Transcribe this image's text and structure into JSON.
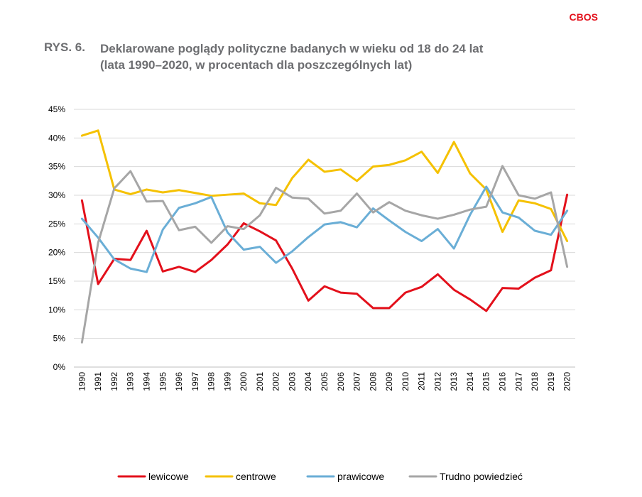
{
  "brand": "CBOS",
  "figure": {
    "number": "RYS. 6.",
    "title_line1": "Deklarowane poglądy polityczne badanych w wieku od 18 do 24 lat",
    "title_line2": "(lata 1990–2020, w procentach dla poszczególnych lat)"
  },
  "chart_data": {
    "type": "line",
    "x": [
      "1990",
      "1991",
      "1992",
      "1993",
      "1994",
      "1995",
      "1996",
      "1997",
      "1998",
      "1999",
      "2000",
      "2001",
      "2002",
      "2003",
      "2004",
      "2005",
      "2006",
      "2007",
      "2008",
      "2009",
      "2010",
      "2011",
      "2012",
      "2013",
      "2014",
      "2015",
      "2016",
      "2017",
      "2018",
      "2019",
      "2020"
    ],
    "ylim": [
      0,
      45
    ],
    "yticks": [
      "0%",
      "5%",
      "10%",
      "15%",
      "20%",
      "25%",
      "30%",
      "35%",
      "40%",
      "45%"
    ],
    "grid": true,
    "legend_position": "bottom",
    "series": [
      {
        "name": "lewicowe",
        "color": "#e3101b",
        "values": [
          29.1,
          14.5,
          18.9,
          18.7,
          23.8,
          16.7,
          17.5,
          16.6,
          18.7,
          21.4,
          25.1,
          23.7,
          22.1,
          17.2,
          11.6,
          14.1,
          13.0,
          12.8,
          10.3,
          10.3,
          13.0,
          14.0,
          16.2,
          13.5,
          11.8,
          9.8,
          13.8,
          13.7,
          15.6,
          16.9,
          30.1
        ]
      },
      {
        "name": "centrowe",
        "color": "#f5c100",
        "values": [
          40.4,
          41.3,
          31.0,
          30.2,
          31.0,
          30.5,
          30.9,
          30.4,
          29.9,
          30.1,
          30.3,
          28.6,
          28.3,
          33.0,
          36.2,
          34.1,
          34.5,
          32.5,
          35.0,
          35.3,
          36.1,
          37.6,
          33.9,
          39.3,
          33.8,
          31.0,
          23.6,
          29.1,
          28.6,
          27.6,
          22.0
        ]
      },
      {
        "name": "prawicowe",
        "color": "#6aaed6",
        "values": [
          25.9,
          22.6,
          18.8,
          17.2,
          16.6,
          24.0,
          27.8,
          28.6,
          29.7,
          23.5,
          20.5,
          21.0,
          18.2,
          20.2,
          22.7,
          24.9,
          25.3,
          24.4,
          27.7,
          25.6,
          23.6,
          22.0,
          24.1,
          20.7,
          26.6,
          31.5,
          27.0,
          26.1,
          23.8,
          23.1,
          27.3
        ]
      },
      {
        "name": "Trudno powiedzieć",
        "color": "#a6a6a6",
        "values": [
          4.3,
          21.7,
          31.2,
          34.2,
          28.9,
          29.0,
          23.9,
          24.5,
          21.7,
          24.6,
          24.1,
          26.5,
          31.3,
          29.6,
          29.4,
          26.8,
          27.3,
          30.3,
          27.0,
          28.8,
          27.3,
          26.5,
          25.9,
          26.6,
          27.5,
          28.0,
          35.1,
          30.0,
          29.4,
          30.5,
          17.5
        ]
      }
    ]
  }
}
